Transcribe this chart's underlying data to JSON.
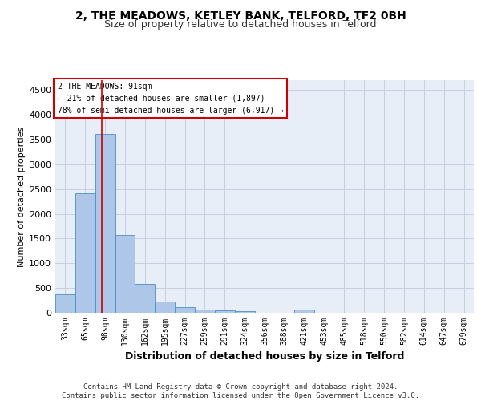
{
  "title1": "2, THE MEADOWS, KETLEY BANK, TELFORD, TF2 0BH",
  "title2": "Size of property relative to detached houses in Telford",
  "xlabel": "Distribution of detached houses by size in Telford",
  "ylabel": "Number of detached properties",
  "categories": [
    "33sqm",
    "65sqm",
    "98sqm",
    "130sqm",
    "162sqm",
    "195sqm",
    "227sqm",
    "259sqm",
    "291sqm",
    "324sqm",
    "356sqm",
    "388sqm",
    "421sqm",
    "453sqm",
    "485sqm",
    "518sqm",
    "550sqm",
    "582sqm",
    "614sqm",
    "647sqm",
    "679sqm"
  ],
  "values": [
    370,
    2420,
    3620,
    1580,
    590,
    230,
    110,
    70,
    55,
    40,
    0,
    0,
    60,
    0,
    0,
    0,
    0,
    0,
    0,
    0,
    0
  ],
  "bar_color": "#aec6e8",
  "bar_edge_color": "#4a90c4",
  "background_color": "#e8eef8",
  "grid_color": "#c8d0e0",
  "vline_color": "#cc0000",
  "annotation_text": "2 THE MEADOWS: 91sqm\n← 21% of detached houses are smaller (1,897)\n78% of semi-detached houses are larger (6,917) →",
  "annotation_box_color": "#cc0000",
  "ylim": [
    0,
    4700
  ],
  "yticks": [
    0,
    500,
    1000,
    1500,
    2000,
    2500,
    3000,
    3500,
    4000,
    4500
  ],
  "footnote": "Contains HM Land Registry data © Crown copyright and database right 2024.\nContains public sector information licensed under the Open Government Licence v3.0.",
  "title1_fontsize": 10,
  "title2_fontsize": 9,
  "xlabel_fontsize": 9,
  "ylabel_fontsize": 8,
  "tick_fontsize": 7,
  "footnote_fontsize": 6.5
}
